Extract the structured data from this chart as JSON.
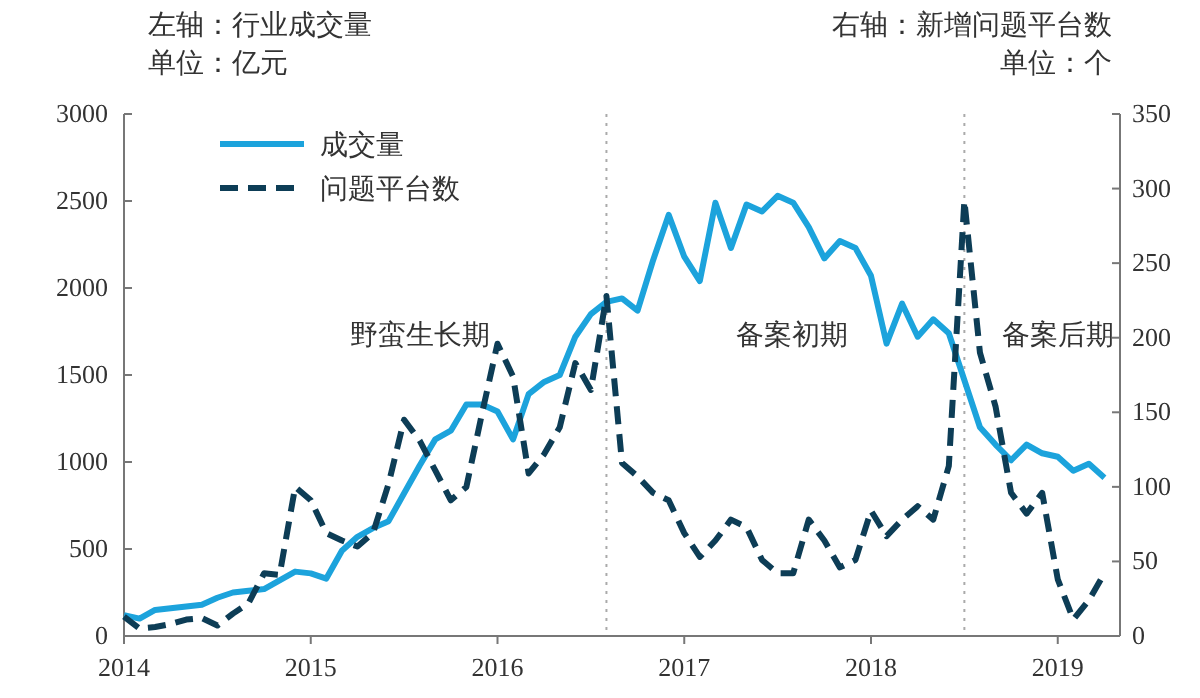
{
  "chart_data": {
    "type": "line",
    "ylabel": "左轴：行业成交量",
    "y2label": "右轴：新增问题平台数",
    "x": [
      "2014-01",
      "2014-02",
      "2014-03",
      "2014-04",
      "2014-05",
      "2014-06",
      "2014-07",
      "2014-08",
      "2014-09",
      "2014-10",
      "2014-11",
      "2014-12",
      "2015-01",
      "2015-02",
      "2015-03",
      "2015-04",
      "2015-05",
      "2015-06",
      "2015-07",
      "2015-08",
      "2015-09",
      "2015-10",
      "2015-11",
      "2015-12",
      "2016-01",
      "2016-02",
      "2016-03",
      "2016-04",
      "2016-05",
      "2016-06",
      "2016-07",
      "2016-08",
      "2016-09",
      "2016-10",
      "2016-11",
      "2016-12",
      "2017-01",
      "2017-02",
      "2017-03",
      "2017-04",
      "2017-05",
      "2017-06",
      "2017-07",
      "2017-08",
      "2017-09",
      "2017-10",
      "2017-11",
      "2017-12",
      "2018-01",
      "2018-02",
      "2018-03",
      "2018-04",
      "2018-05",
      "2018-06",
      "2018-07",
      "2018-08",
      "2018-09",
      "2018-10",
      "2018-11",
      "2018-12",
      "2019-01",
      "2019-02",
      "2019-03",
      "2019-04"
    ],
    "series": [
      {
        "name": "成交量",
        "color": "#1ca3dc",
        "line_style": "solid",
        "values": [
          120,
          100,
          150,
          160,
          170,
          180,
          220,
          250,
          260,
          270,
          320,
          370,
          360,
          330,
          490,
          570,
          620,
          660,
          820,
          980,
          1130,
          1180,
          1330,
          1330,
          1290,
          1130,
          1390,
          1460,
          1500,
          1720,
          1850,
          1920,
          1940,
          1870,
          2160,
          2420,
          2180,
          2040,
          2490,
          2230,
          2480,
          2440,
          2530,
          2490,
          2350,
          2170,
          2270,
          2230,
          2070,
          1680,
          1910,
          1720,
          1820,
          1740,
          1470,
          1200,
          1100,
          1010,
          1100,
          1050,
          1030,
          950,
          990,
          910
        ]
      },
      {
        "name": "问题平台数",
        "color": "#0d3d56",
        "line_style": "dashed",
        "axis": "y2",
        "values": [
          13,
          5,
          6,
          8,
          11,
          12,
          7,
          15,
          22,
          42,
          41,
          100,
          91,
          69,
          64,
          60,
          69,
          102,
          145,
          131,
          111,
          91,
          100,
          149,
          196,
          174,
          109,
          122,
          140,
          183,
          165,
          228,
          116,
          107,
          96,
          91,
          69,
          53,
          64,
          78,
          73,
          51,
          42,
          42,
          78,
          64,
          46,
          51,
          84,
          67,
          78,
          87,
          78,
          114,
          292,
          190,
          154,
          96,
          82,
          96,
          38,
          11,
          24,
          42
        ]
      }
    ],
    "xlim": [
      "2014-01",
      "2019-05"
    ],
    "xticks": [
      "2014",
      "2015",
      "2016",
      "2017",
      "2018",
      "2019"
    ],
    "ylim": [
      0,
      3000
    ],
    "yticks": [
      0,
      500,
      1000,
      1500,
      2000,
      2500,
      3000
    ],
    "y2lim": [
      0,
      350
    ],
    "y2ticks": [
      0,
      50,
      100,
      150,
      200,
      250,
      300,
      350
    ],
    "ref_lines": [
      {
        "axis": "x",
        "value": "2016-08",
        "color": "#aaaaaa",
        "line_style": "dotted"
      },
      {
        "axis": "x",
        "value": "2018-07",
        "color": "#aaaaaa",
        "line_style": "dotted"
      }
    ],
    "annotations": [
      "单位：亿元",
      "单位：个",
      "野蛮生长期",
      "备案初期",
      "备案后期"
    ],
    "legend": "top left",
    "grid": false
  }
}
